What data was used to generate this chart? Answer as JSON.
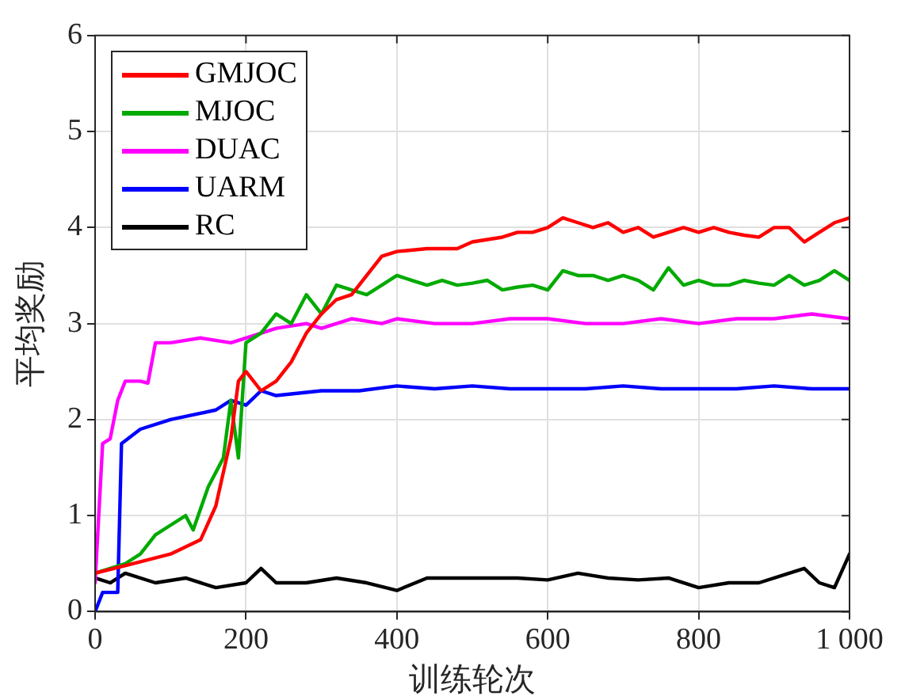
{
  "chart_data": {
    "type": "line",
    "xlabel": "训练轮次",
    "ylabel": "平均奖励",
    "xlim": [
      0,
      1000
    ],
    "ylim": [
      0,
      6
    ],
    "xticks": [
      0,
      200,
      400,
      600,
      800,
      {
        "value": 1000,
        "label": "1 000"
      }
    ],
    "yticks": [
      0,
      1,
      2,
      3,
      4,
      5,
      6
    ],
    "grid": true,
    "legend": "top left",
    "marker": "none",
    "line_style": "solid",
    "series": [
      {
        "name": "GMJOC",
        "color": "#ff0000",
        "x": [
          0,
          50,
          100,
          140,
          160,
          180,
          190,
          200,
          220,
          240,
          260,
          280,
          300,
          320,
          340,
          360,
          380,
          400,
          440,
          480,
          500,
          540,
          560,
          580,
          600,
          620,
          640,
          660,
          680,
          700,
          720,
          740,
          760,
          780,
          800,
          820,
          840,
          860,
          880,
          900,
          920,
          940,
          960,
          980,
          1000
        ],
        "values": [
          0.4,
          0.5,
          0.6,
          0.75,
          1.1,
          1.8,
          2.4,
          2.5,
          2.3,
          2.4,
          2.6,
          2.9,
          3.1,
          3.25,
          3.3,
          3.5,
          3.7,
          3.75,
          3.78,
          3.78,
          3.85,
          3.9,
          3.95,
          3.95,
          4.0,
          4.1,
          4.05,
          4.0,
          4.05,
          3.95,
          4.0,
          3.9,
          3.95,
          4.0,
          3.95,
          4.0,
          3.95,
          3.92,
          3.9,
          4.0,
          4.0,
          3.85,
          3.95,
          4.05,
          4.1
        ]
      },
      {
        "name": "MJOC",
        "color": "#00aa00",
        "x": [
          0,
          40,
          60,
          80,
          100,
          120,
          130,
          150,
          170,
          180,
          190,
          200,
          220,
          240,
          260,
          280,
          300,
          320,
          340,
          360,
          380,
          400,
          420,
          440,
          460,
          480,
          500,
          520,
          540,
          560,
          580,
          600,
          620,
          640,
          660,
          680,
          700,
          720,
          740,
          760,
          780,
          800,
          820,
          840,
          860,
          880,
          900,
          920,
          940,
          960,
          980,
          1000
        ],
        "values": [
          0.4,
          0.5,
          0.6,
          0.8,
          0.9,
          1.0,
          0.85,
          1.3,
          1.6,
          2.2,
          1.6,
          2.8,
          2.9,
          3.1,
          3.0,
          3.3,
          3.1,
          3.4,
          3.35,
          3.3,
          3.4,
          3.5,
          3.45,
          3.4,
          3.45,
          3.4,
          3.42,
          3.45,
          3.35,
          3.38,
          3.4,
          3.35,
          3.55,
          3.5,
          3.5,
          3.45,
          3.5,
          3.45,
          3.35,
          3.58,
          3.4,
          3.45,
          3.4,
          3.4,
          3.45,
          3.42,
          3.4,
          3.5,
          3.4,
          3.45,
          3.55,
          3.45
        ]
      },
      {
        "name": "DUAC",
        "color": "#ff00ff",
        "x": [
          0,
          10,
          20,
          30,
          40,
          60,
          70,
          80,
          100,
          140,
          180,
          200,
          240,
          280,
          300,
          340,
          380,
          400,
          450,
          500,
          550,
          600,
          650,
          700,
          750,
          800,
          850,
          900,
          950,
          1000
        ],
        "values": [
          0.3,
          1.75,
          1.8,
          2.2,
          2.4,
          2.4,
          2.38,
          2.8,
          2.8,
          2.85,
          2.8,
          2.85,
          2.95,
          3.0,
          2.95,
          3.05,
          3.0,
          3.05,
          3.0,
          3.0,
          3.05,
          3.05,
          3.0,
          3.0,
          3.05,
          3.0,
          3.05,
          3.05,
          3.1,
          3.05
        ]
      },
      {
        "name": "UARM",
        "color": "#0000ff",
        "x": [
          0,
          10,
          30,
          35,
          60,
          100,
          160,
          180,
          200,
          220,
          240,
          300,
          350,
          400,
          450,
          500,
          550,
          600,
          650,
          700,
          750,
          800,
          850,
          900,
          950,
          1000
        ],
        "values": [
          0.0,
          0.2,
          0.2,
          1.75,
          1.9,
          2.0,
          2.1,
          2.2,
          2.15,
          2.3,
          2.25,
          2.3,
          2.3,
          2.35,
          2.32,
          2.35,
          2.32,
          2.32,
          2.32,
          2.35,
          2.32,
          2.32,
          2.32,
          2.35,
          2.32,
          2.32
        ]
      },
      {
        "name": "RC",
        "color": "#000000",
        "x": [
          0,
          20,
          40,
          80,
          120,
          160,
          200,
          220,
          240,
          280,
          320,
          360,
          400,
          440,
          480,
          520,
          560,
          600,
          640,
          680,
          720,
          760,
          800,
          840,
          880,
          920,
          940,
          960,
          980,
          1000
        ],
        "values": [
          0.35,
          0.3,
          0.4,
          0.3,
          0.35,
          0.25,
          0.3,
          0.45,
          0.3,
          0.3,
          0.35,
          0.3,
          0.22,
          0.35,
          0.35,
          0.35,
          0.35,
          0.33,
          0.4,
          0.35,
          0.33,
          0.35,
          0.25,
          0.3,
          0.3,
          0.4,
          0.45,
          0.3,
          0.25,
          0.6
        ]
      }
    ]
  }
}
